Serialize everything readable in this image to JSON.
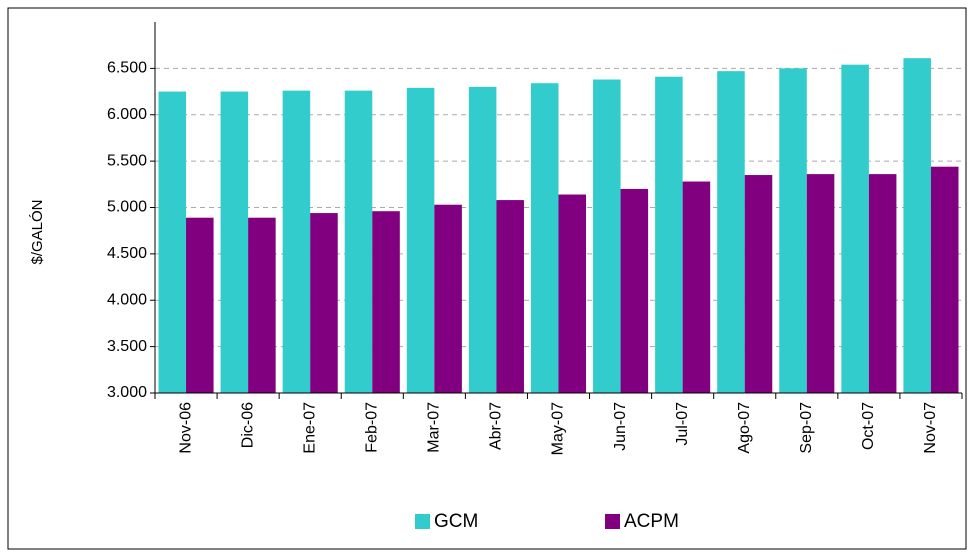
{
  "chart_data": {
    "type": "bar",
    "ylabel": "$/GALÓN",
    "categories": [
      "Nov-06",
      "Dic-06",
      "Ene-07",
      "Feb-07",
      "Mar-07",
      "Abr-07",
      "May-07",
      "Jun-07",
      "Jul-07",
      "Ago-07",
      "Sep-07",
      "Oct-07",
      "Nov-07"
    ],
    "series": [
      {
        "name": "GCM",
        "color": "#33cccc",
        "values": [
          6250,
          6250,
          6260,
          6260,
          6290,
          6300,
          6340,
          6380,
          6410,
          6470,
          6500,
          6540,
          6610
        ]
      },
      {
        "name": "ACPM",
        "color": "#800080",
        "values": [
          4890,
          4890,
          4940,
          4960,
          5030,
          5080,
          5140,
          5200,
          5280,
          5350,
          5360,
          5360,
          5440
        ]
      }
    ],
    "ylim": [
      3000,
      7000
    ],
    "yticks": [
      {
        "value": 3000,
        "label": "3.000"
      },
      {
        "value": 3500,
        "label": "3.500"
      },
      {
        "value": 4000,
        "label": "4.000"
      },
      {
        "value": 4500,
        "label": "4.500"
      },
      {
        "value": 5000,
        "label": "5.000"
      },
      {
        "value": 5500,
        "label": "5.500"
      },
      {
        "value": 6000,
        "label": "6.000"
      },
      {
        "value": 6500,
        "label": "6.500"
      }
    ],
    "grid": true,
    "legend": "bottom"
  }
}
